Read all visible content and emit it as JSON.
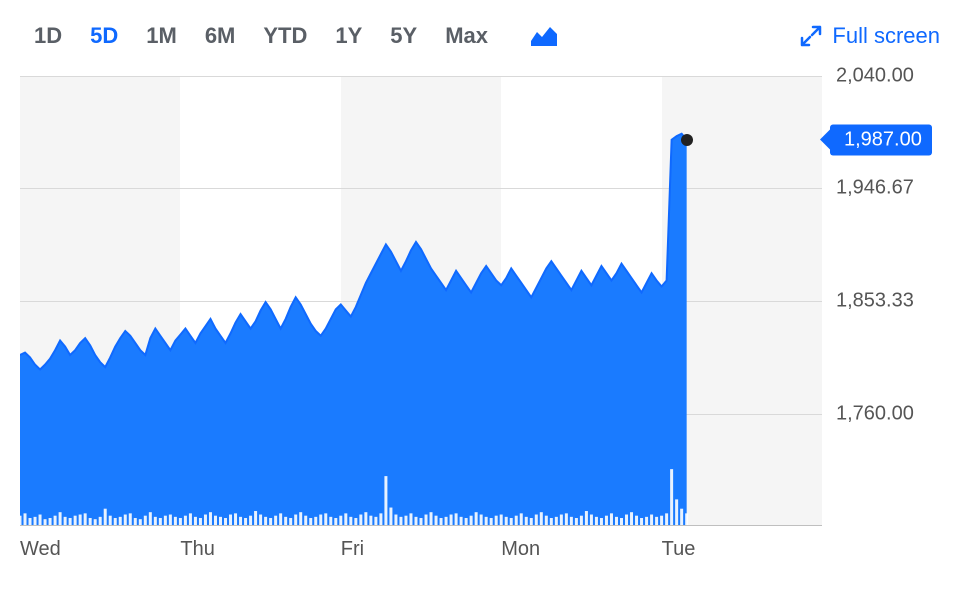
{
  "toolbar": {
    "ranges": [
      "1D",
      "5D",
      "1M",
      "6M",
      "YTD",
      "1Y",
      "5Y",
      "Max"
    ],
    "active_range_index": 1,
    "fullscreen_label": "Full screen"
  },
  "chart": {
    "type": "area",
    "line_color": "#0f69ff",
    "fill_color": "#1a7bff",
    "background_color": "#ffffff",
    "alt_band_color": "#f5f5f5",
    "grid_color": "#d9d9d9",
    "axis_label_color": "#555555",
    "volume_bar_color": "#ffffff",
    "volume_bar_alpha": 0.9,
    "marker_color": "#222222",
    "price_tag_bg": "#0f69ff",
    "price_tag_text": "#ffffff",
    "ymin": 1666.67,
    "ymax": 2040.0,
    "ytick_values": [
      2040.0,
      1946.67,
      1853.33,
      1760.0
    ],
    "ytick_labels": [
      "2,040.00",
      "1,946.67",
      "1,853.33",
      "1,760.00"
    ],
    "current_price": 1987.0,
    "current_price_label": "1,987.00",
    "x_days": [
      "Wed",
      "Thu",
      "Fri",
      "Mon",
      "Tue"
    ],
    "points_per_day": 32,
    "tue_points_drawn": 6,
    "series": [
      1808,
      1810,
      1806,
      1800,
      1796,
      1800,
      1805,
      1812,
      1820,
      1815,
      1808,
      1812,
      1818,
      1822,
      1816,
      1808,
      1802,
      1798,
      1806,
      1815,
      1822,
      1828,
      1824,
      1818,
      1812,
      1808,
      1822,
      1830,
      1824,
      1818,
      1812,
      1820,
      1825,
      1830,
      1824,
      1818,
      1826,
      1832,
      1838,
      1830,
      1824,
      1818,
      1826,
      1835,
      1842,
      1836,
      1830,
      1836,
      1845,
      1852,
      1846,
      1838,
      1830,
      1838,
      1848,
      1856,
      1850,
      1842,
      1834,
      1828,
      1824,
      1830,
      1838,
      1846,
      1850,
      1845,
      1840,
      1848,
      1858,
      1868,
      1876,
      1884,
      1892,
      1900,
      1894,
      1886,
      1878,
      1886,
      1895,
      1902,
      1896,
      1888,
      1880,
      1874,
      1868,
      1862,
      1870,
      1878,
      1872,
      1866,
      1860,
      1868,
      1876,
      1882,
      1876,
      1870,
      1866,
      1872,
      1880,
      1874,
      1868,
      1862,
      1856,
      1864,
      1872,
      1880,
      1886,
      1880,
      1874,
      1868,
      1862,
      1870,
      1878,
      1872,
      1866,
      1874,
      1882,
      1876,
      1870,
      1876,
      1884,
      1878,
      1872,
      1866,
      1860,
      1868,
      1876,
      1870,
      1865,
      1870,
      1987,
      1990,
      1992,
      1987
    ],
    "volumes": [
      8,
      10,
      6,
      7,
      9,
      5,
      6,
      8,
      11,
      7,
      6,
      8,
      9,
      10,
      6,
      5,
      7,
      14,
      8,
      6,
      7,
      9,
      10,
      6,
      5,
      8,
      11,
      7,
      6,
      8,
      9,
      7,
      6,
      8,
      10,
      7,
      6,
      9,
      11,
      8,
      7,
      6,
      9,
      10,
      7,
      6,
      8,
      12,
      9,
      7,
      6,
      8,
      10,
      7,
      6,
      9,
      11,
      8,
      6,
      7,
      9,
      10,
      7,
      6,
      8,
      10,
      7,
      6,
      9,
      11,
      8,
      7,
      10,
      42,
      15,
      9,
      7,
      8,
      10,
      7,
      6,
      9,
      11,
      8,
      6,
      7,
      9,
      10,
      7,
      6,
      8,
      11,
      9,
      7,
      6,
      8,
      9,
      7,
      6,
      8,
      10,
      7,
      6,
      9,
      11,
      8,
      6,
      7,
      9,
      10,
      7,
      6,
      8,
      12,
      9,
      7,
      6,
      8,
      10,
      7,
      6,
      9,
      11,
      8,
      6,
      7,
      9,
      7,
      8,
      10,
      48,
      22,
      14,
      10
    ],
    "volume_max": 60
  }
}
